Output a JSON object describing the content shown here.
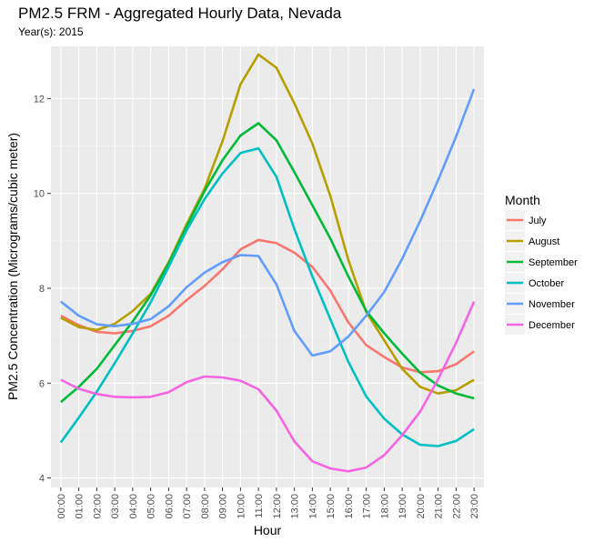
{
  "chart_data": {
    "type": "line",
    "title": "PM2.5 FRM - Aggregated Hourly Data, Nevada",
    "subtitle": "Year(s): 2015",
    "xlabel": "Hour",
    "ylabel": "PM2.5 Concentration (Micrograms/cubic meter)",
    "x": [
      "00:00",
      "01:00",
      "02:00",
      "03:00",
      "04:00",
      "05:00",
      "06:00",
      "07:00",
      "08:00",
      "09:00",
      "10:00",
      "11:00",
      "12:00",
      "13:00",
      "14:00",
      "15:00",
      "16:00",
      "17:00",
      "18:00",
      "19:00",
      "20:00",
      "21:00",
      "22:00",
      "23:00"
    ],
    "yticks": [
      4,
      6,
      8,
      10,
      12
    ],
    "ylim": [
      3.8,
      13.1
    ],
    "grid": true,
    "legend": {
      "title": "Month",
      "placement": "right"
    },
    "series": [
      {
        "name": "July",
        "color": "#F8766D",
        "values": [
          7.42,
          7.22,
          7.08,
          7.05,
          7.1,
          7.2,
          7.42,
          7.75,
          8.05,
          8.4,
          8.82,
          9.02,
          8.95,
          8.75,
          8.45,
          7.95,
          7.28,
          6.8,
          6.55,
          6.33,
          6.23,
          6.25,
          6.4,
          6.67
        ]
      },
      {
        "name": "August",
        "color": "#B79F00",
        "values": [
          7.38,
          7.18,
          7.12,
          7.25,
          7.52,
          7.88,
          8.55,
          9.35,
          10.1,
          11.1,
          12.3,
          12.93,
          12.65,
          11.9,
          11.05,
          9.95,
          8.6,
          7.5,
          6.9,
          6.3,
          5.92,
          5.78,
          5.85,
          6.07
        ]
      },
      {
        "name": "September",
        "color": "#00BA38",
        "values": [
          5.6,
          5.92,
          6.3,
          6.8,
          7.3,
          7.85,
          8.52,
          9.3,
          10.05,
          10.7,
          11.22,
          11.48,
          11.12,
          10.45,
          9.75,
          9.05,
          8.25,
          7.52,
          7.05,
          6.62,
          6.22,
          5.95,
          5.78,
          5.68
        ]
      },
      {
        "name": "October",
        "color": "#00BFC4",
        "values": [
          4.75,
          5.27,
          5.82,
          6.42,
          7.05,
          7.7,
          8.45,
          9.22,
          9.88,
          10.42,
          10.85,
          10.95,
          10.35,
          9.25,
          8.25,
          7.35,
          6.45,
          5.72,
          5.25,
          4.92,
          4.7,
          4.67,
          4.78,
          5.03
        ]
      },
      {
        "name": "November",
        "color": "#619CFF",
        "values": [
          7.72,
          7.42,
          7.24,
          7.2,
          7.25,
          7.35,
          7.62,
          8.02,
          8.33,
          8.55,
          8.7,
          8.68,
          8.08,
          7.1,
          6.58,
          6.67,
          6.98,
          7.42,
          7.92,
          8.62,
          9.42,
          10.28,
          11.2,
          12.2
        ]
      },
      {
        "name": "December",
        "color": "#F564E3",
        "values": [
          6.07,
          5.88,
          5.77,
          5.71,
          5.7,
          5.71,
          5.81,
          6.02,
          6.14,
          6.12,
          6.05,
          5.87,
          5.42,
          4.77,
          4.35,
          4.2,
          4.14,
          4.22,
          4.48,
          4.9,
          5.4,
          6.08,
          6.85,
          7.72
        ]
      }
    ]
  }
}
